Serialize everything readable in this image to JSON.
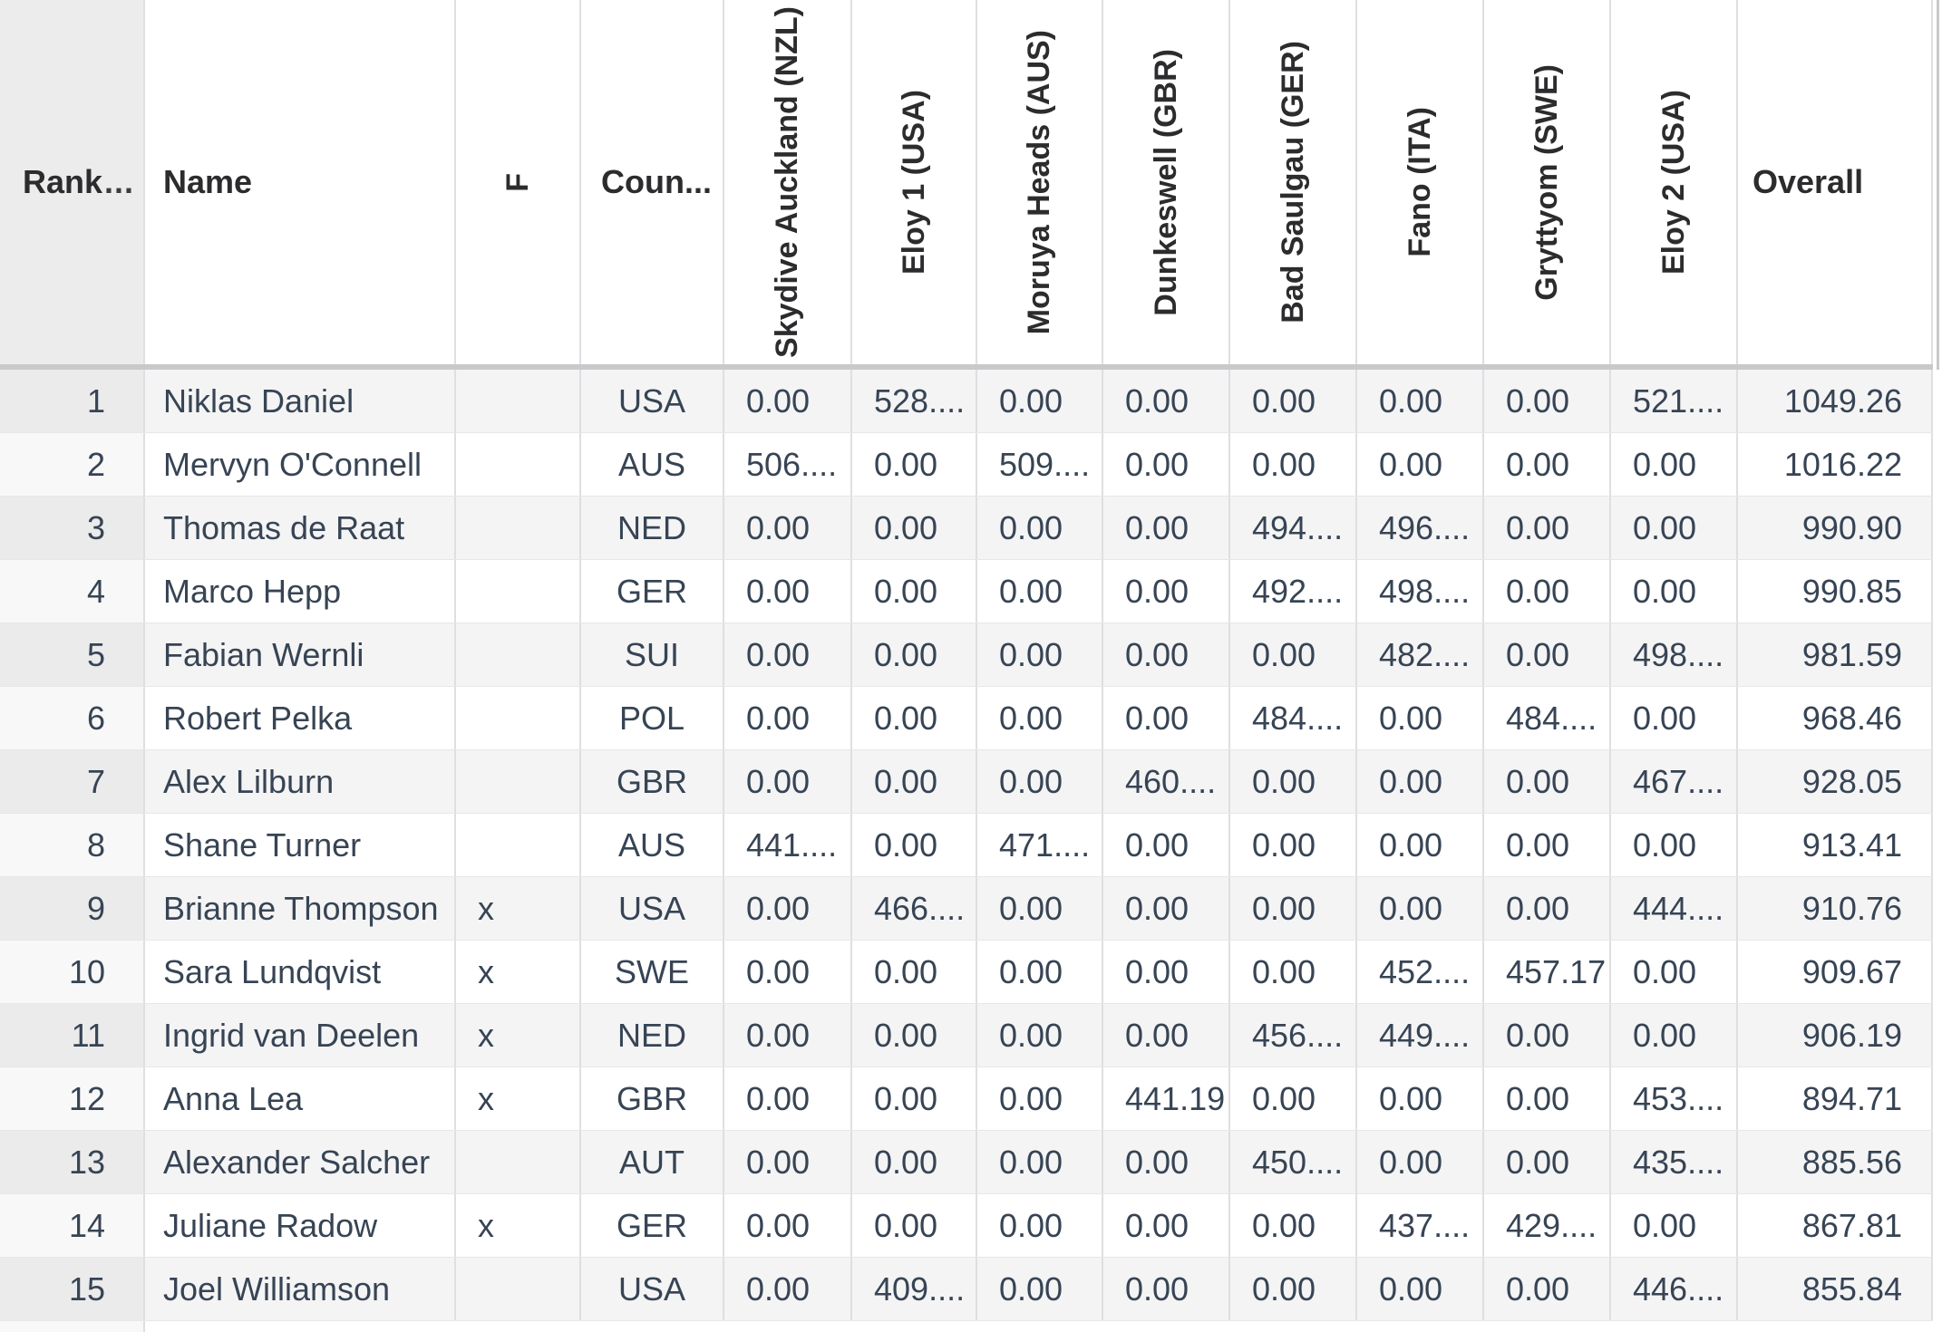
{
  "table": {
    "rank_header_more": "...",
    "columns": [
      {
        "id": "rank",
        "label": "Rank",
        "rotated": false
      },
      {
        "id": "name",
        "label": "Name",
        "rotated": false
      },
      {
        "id": "f",
        "label": "F",
        "rotated": true
      },
      {
        "id": "country",
        "label": "Coun...",
        "rotated": false
      },
      {
        "id": "skydive-auckland-nzl",
        "label": "Skydive Auckland (NZL)",
        "rotated": true
      },
      {
        "id": "eloy-1-usa",
        "label": "Eloy 1 (USA)",
        "rotated": true
      },
      {
        "id": "moruya-heads-aus",
        "label": "Moruya Heads (AUS)",
        "rotated": true
      },
      {
        "id": "dunkeswell-gbr",
        "label": "Dunkeswell (GBR)",
        "rotated": true
      },
      {
        "id": "bad-saulgau-ger",
        "label": "Bad Saulgau (GER)",
        "rotated": true
      },
      {
        "id": "fano-ita",
        "label": "Fano (ITA)",
        "rotated": true
      },
      {
        "id": "gryttyom-swe",
        "label": "Gryttyom (SWE)",
        "rotated": true
      },
      {
        "id": "eloy-2-usa",
        "label": "Eloy 2 (USA)",
        "rotated": true
      },
      {
        "id": "overall",
        "label": "Overall",
        "rotated": false
      }
    ],
    "rows": [
      {
        "rank": "1",
        "name": "Niklas Daniel",
        "f": "",
        "country": "USA",
        "scores": [
          "0.00",
          "528....",
          "0.00",
          "0.00",
          "0.00",
          "0.00",
          "0.00",
          "521...."
        ],
        "overall": "1049.26"
      },
      {
        "rank": "2",
        "name": "Mervyn O'Connell",
        "f": "",
        "country": "AUS",
        "scores": [
          "506....",
          "0.00",
          "509....",
          "0.00",
          "0.00",
          "0.00",
          "0.00",
          "0.00"
        ],
        "overall": "1016.22"
      },
      {
        "rank": "3",
        "name": "Thomas de Raat",
        "f": "",
        "country": "NED",
        "scores": [
          "0.00",
          "0.00",
          "0.00",
          "0.00",
          "494....",
          "496....",
          "0.00",
          "0.00"
        ],
        "overall": "990.90"
      },
      {
        "rank": "4",
        "name": "Marco Hepp",
        "f": "",
        "country": "GER",
        "scores": [
          "0.00",
          "0.00",
          "0.00",
          "0.00",
          "492....",
          "498....",
          "0.00",
          "0.00"
        ],
        "overall": "990.85"
      },
      {
        "rank": "5",
        "name": "Fabian Wernli",
        "f": "",
        "country": "SUI",
        "scores": [
          "0.00",
          "0.00",
          "0.00",
          "0.00",
          "0.00",
          "482....",
          "0.00",
          "498...."
        ],
        "overall": "981.59"
      },
      {
        "rank": "6",
        "name": "Robert Pelka",
        "f": "",
        "country": "POL",
        "scores": [
          "0.00",
          "0.00",
          "0.00",
          "0.00",
          "484....",
          "0.00",
          "484....",
          "0.00"
        ],
        "overall": "968.46"
      },
      {
        "rank": "7",
        "name": "Alex Lilburn",
        "f": "",
        "country": "GBR",
        "scores": [
          "0.00",
          "0.00",
          "0.00",
          "460....",
          "0.00",
          "0.00",
          "0.00",
          "467...."
        ],
        "overall": "928.05"
      },
      {
        "rank": "8",
        "name": "Shane Turner",
        "f": "",
        "country": "AUS",
        "scores": [
          "441....",
          "0.00",
          "471....",
          "0.00",
          "0.00",
          "0.00",
          "0.00",
          "0.00"
        ],
        "overall": "913.41"
      },
      {
        "rank": "9",
        "name": "Brianne Thompson",
        "f": "x",
        "country": "USA",
        "scores": [
          "0.00",
          "466....",
          "0.00",
          "0.00",
          "0.00",
          "0.00",
          "0.00",
          "444...."
        ],
        "overall": "910.76"
      },
      {
        "rank": "10",
        "name": "Sara Lundqvist",
        "f": "x",
        "country": "SWE",
        "scores": [
          "0.00",
          "0.00",
          "0.00",
          "0.00",
          "0.00",
          "452....",
          "457.17",
          "0.00"
        ],
        "overall": "909.67"
      },
      {
        "rank": "11",
        "name": "Ingrid van Deelen",
        "f": "x",
        "country": "NED",
        "scores": [
          "0.00",
          "0.00",
          "0.00",
          "0.00",
          "456....",
          "449....",
          "0.00",
          "0.00"
        ],
        "overall": "906.19"
      },
      {
        "rank": "12",
        "name": "Anna Lea",
        "f": "x",
        "country": "GBR",
        "scores": [
          "0.00",
          "0.00",
          "0.00",
          "441.19",
          "0.00",
          "0.00",
          "0.00",
          "453...."
        ],
        "overall": "894.71"
      },
      {
        "rank": "13",
        "name": "Alexander Salcher",
        "f": "",
        "country": "AUT",
        "scores": [
          "0.00",
          "0.00",
          "0.00",
          "0.00",
          "450....",
          "0.00",
          "0.00",
          "435...."
        ],
        "overall": "885.56"
      },
      {
        "rank": "14",
        "name": "Juliane Radow",
        "f": "x",
        "country": "GER",
        "scores": [
          "0.00",
          "0.00",
          "0.00",
          "0.00",
          "0.00",
          "437....",
          "429....",
          "0.00"
        ],
        "overall": "867.81"
      },
      {
        "rank": "15",
        "name": "Joel Williamson",
        "f": "",
        "country": "USA",
        "scores": [
          "0.00",
          "409....",
          "0.00",
          "0.00",
          "0.00",
          "0.00",
          "0.00",
          "446...."
        ],
        "overall": "855.84"
      }
    ]
  },
  "colors": {
    "header_text": "#2c2c2e",
    "body_text": "#374454",
    "odd_row_bg": "#f4f4f5",
    "odd_rank_bg": "#ebebec",
    "even_row_bg": "#ffffff",
    "header_rank_bg": "#ececed",
    "header_border": "#c9c9cc",
    "column_border": "#dfdfe2"
  }
}
